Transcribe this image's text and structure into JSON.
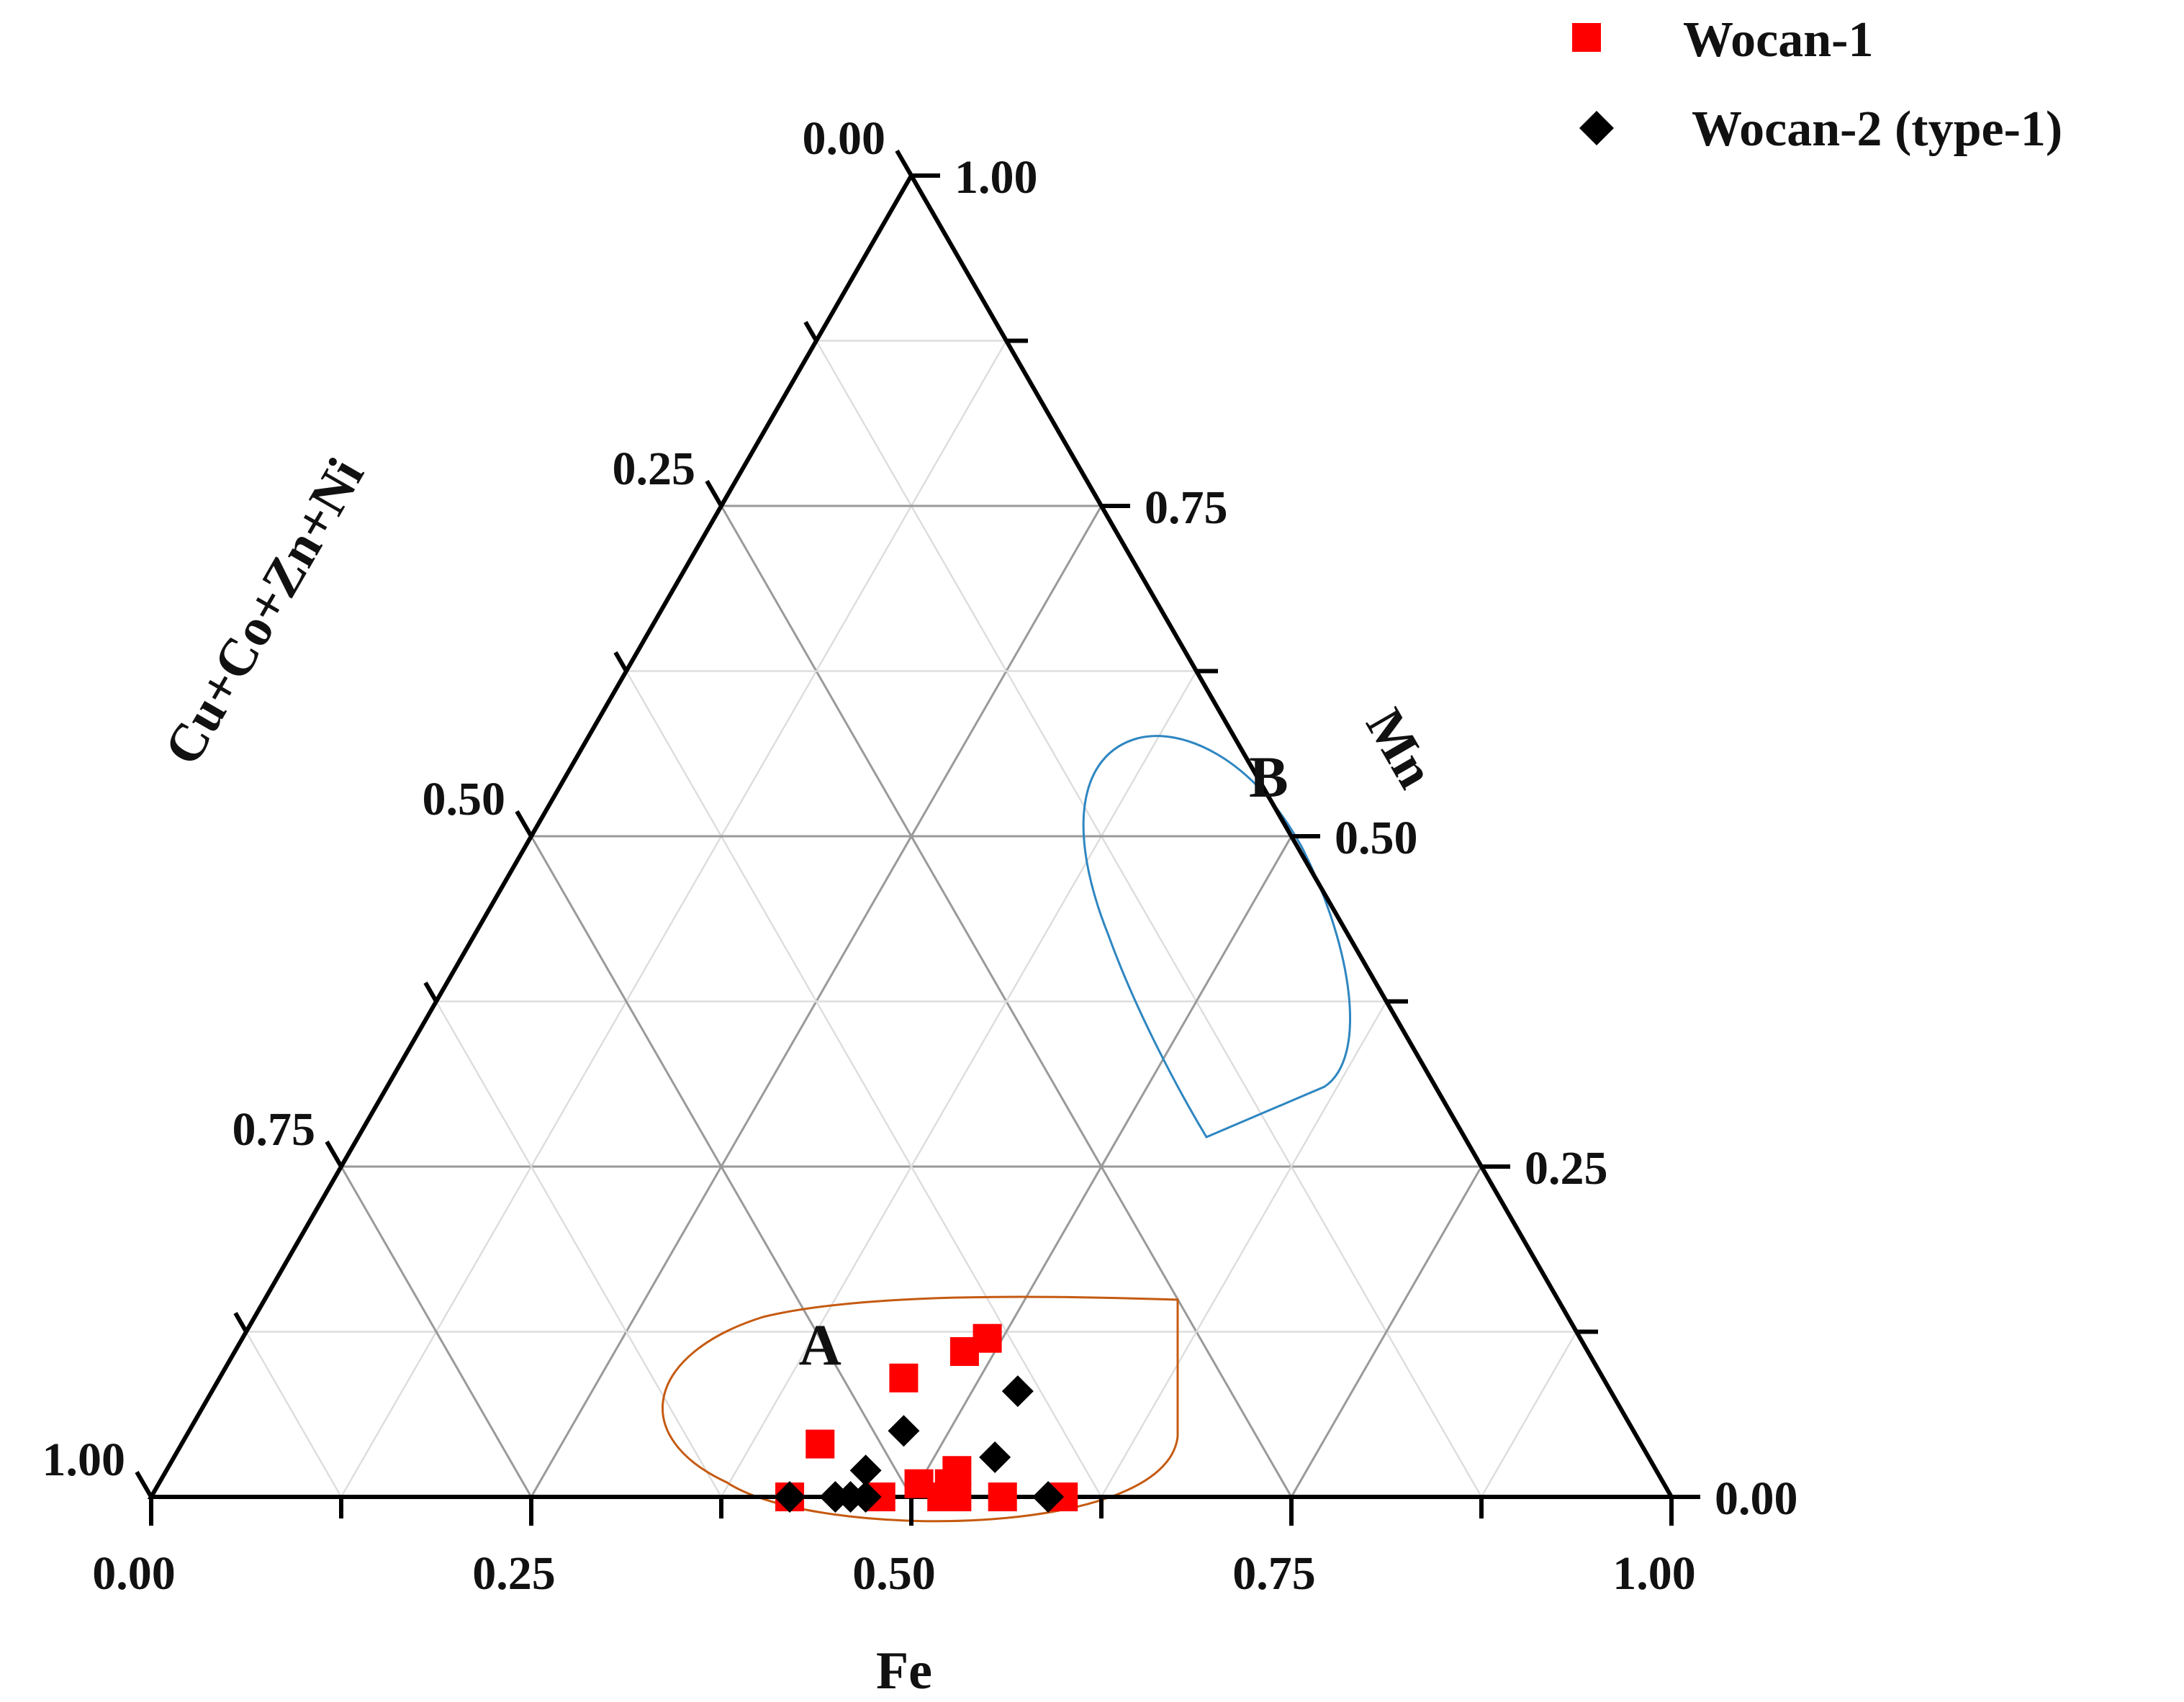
{
  "chart_data": {
    "type": "ternary-scatter",
    "axes": {
      "fe": {
        "label": "Fe",
        "ticks": [
          "0.00",
          "0.25",
          "0.50",
          "0.75",
          "1.00"
        ]
      },
      "mn": {
        "label": "Mn",
        "ticks": [
          "0.00",
          "0.25",
          "0.50",
          "0.75",
          "1.00"
        ]
      },
      "cu": {
        "label": "Cu+Co+Zn+Ni",
        "ticks": [
          "0.00",
          "0.25",
          "0.50",
          "0.75",
          "1.00"
        ]
      }
    },
    "grid": {
      "major_step": 0.25,
      "minor_step": 0.125
    },
    "legend": {
      "position": "top-right",
      "entries": [
        {
          "name": "Wocan-1",
          "marker": "square",
          "color": "#ff0000"
        },
        {
          "name": "Wocan-2 (type-1)",
          "marker": "diamond",
          "color": "#000000"
        }
      ]
    },
    "series": [
      {
        "name": "Wocan-1",
        "marker": "square",
        "color": "#ff0000",
        "points": [
          {
            "fe": 0.42,
            "mn": 0.0
          },
          {
            "fe": 0.48,
            "mn": 0.0
          },
          {
            "fe": 0.52,
            "mn": 0.0
          },
          {
            "fe": 0.53,
            "mn": 0.0
          },
          {
            "fe": 0.56,
            "mn": 0.0
          },
          {
            "fe": 0.6,
            "mn": 0.0
          },
          {
            "fe": 0.5,
            "mn": 0.01
          },
          {
            "fe": 0.52,
            "mn": 0.01
          },
          {
            "fe": 0.52,
            "mn": 0.02
          },
          {
            "fe": 0.45,
            "mn": 0.09
          },
          {
            "fe": 0.48,
            "mn": 0.11
          },
          {
            "fe": 0.49,
            "mn": 0.12
          },
          {
            "fe": 0.42,
            "mn": 0.04
          }
        ]
      },
      {
        "name": "Wocan-2 (type-1)",
        "marker": "diamond",
        "color": "#000000",
        "points": [
          {
            "fe": 0.42,
            "mn": 0.0
          },
          {
            "fe": 0.45,
            "mn": 0.0
          },
          {
            "fe": 0.46,
            "mn": 0.0
          },
          {
            "fe": 0.47,
            "mn": 0.0
          },
          {
            "fe": 0.59,
            "mn": 0.0
          },
          {
            "fe": 0.46,
            "mn": 0.02
          },
          {
            "fe": 0.54,
            "mn": 0.03
          },
          {
            "fe": 0.47,
            "mn": 0.05
          },
          {
            "fe": 0.53,
            "mn": 0.08
          }
        ]
      }
    ],
    "regions": [
      {
        "label": "A",
        "color": "#c55a11",
        "label_at": {
          "fe": 0.39,
          "mn": 0.1
        }
      },
      {
        "label": "B",
        "color": "#2e86c1",
        "label_at": {
          "fe": 0.47,
          "mn": 0.53
        }
      }
    ]
  }
}
